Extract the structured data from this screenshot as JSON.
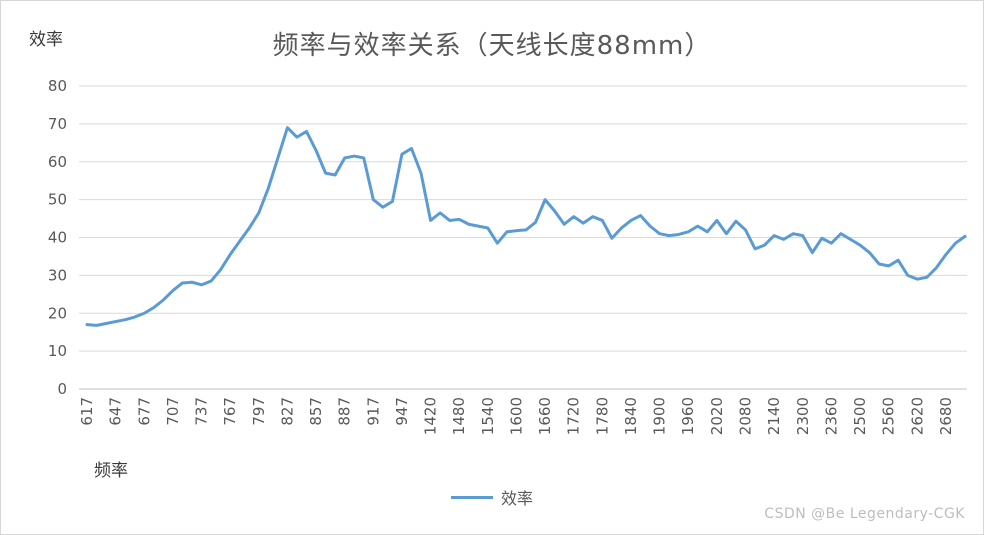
{
  "chart": {
    "title": "频率与效率关系（天线长度88mm）",
    "y_axis_title": "效率",
    "x_axis_title": "频率",
    "legend_label": "效率",
    "watermark": "CSDN @Be Legendary-CGK"
  },
  "chart_data": {
    "type": "line",
    "title": "频率与效率关系（天线长度88mm）",
    "xlabel": "频率",
    "ylabel": "效率",
    "ylim": [
      0,
      80
    ],
    "yticks": [
      0,
      10,
      20,
      30,
      40,
      50,
      60,
      70,
      80
    ],
    "grid": true,
    "legend_position": "bottom",
    "line_color": "#5b9bd5",
    "axis_color": "#bfbfbf",
    "grid_color": "#d9d9d9",
    "tick_label_color": "#595959",
    "categories": [
      "617",
      "647",
      "677",
      "707",
      "737",
      "767",
      "797",
      "827",
      "857",
      "887",
      "917",
      "947",
      "1420",
      "1480",
      "1540",
      "1600",
      "1660",
      "1720",
      "1780",
      "1840",
      "1900",
      "1960",
      "2020",
      "2080",
      "2140",
      "2300",
      "2360",
      "2500",
      "2560",
      "2620",
      "2680"
    ],
    "points_per_label": 3,
    "series": [
      {
        "name": "效率",
        "values": [
          17,
          16.8,
          17.3,
          17.8,
          18.3,
          19,
          20,
          21.5,
          23.5,
          26,
          28,
          28.2,
          27.5,
          28.5,
          31.5,
          35.5,
          39,
          42.5,
          46.5,
          53,
          61,
          69,
          66.5,
          68,
          63,
          57,
          56.5,
          61,
          61.5,
          61,
          50,
          48,
          49.5,
          62,
          63.5,
          57,
          44.5,
          46.5,
          44.5,
          44.8,
          43.5,
          43,
          42.5,
          38.5,
          41.5,
          41.8,
          42,
          44,
          50,
          47,
          43.5,
          45.5,
          43.8,
          45.5,
          44.5,
          39.8,
          42.5,
          44.5,
          45.8,
          43,
          41,
          40.5,
          40.8,
          41.5,
          43,
          41.5,
          44.5,
          41,
          44.3,
          42,
          37,
          38,
          40.5,
          39.5,
          41,
          40.5,
          36,
          39.8,
          38.5,
          41,
          39.5,
          38,
          36,
          33,
          32.5,
          34,
          30,
          29,
          29.5,
          32,
          35.5,
          38.5,
          40.3
        ]
      }
    ]
  }
}
